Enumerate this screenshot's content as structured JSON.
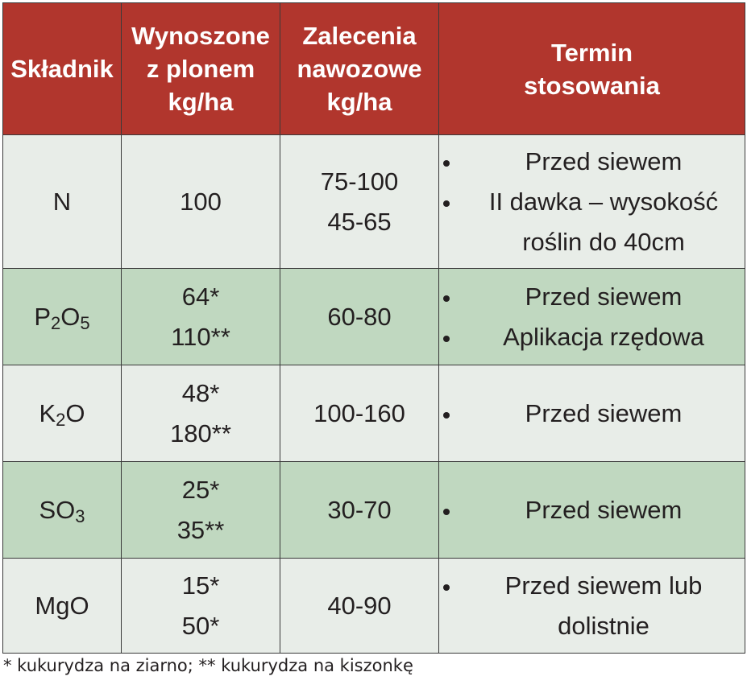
{
  "table": {
    "headers": [
      [
        "Składnik"
      ],
      [
        "Wynoszone",
        "z plonem",
        "kg/ha"
      ],
      [
        "Zalecenia",
        "nawozowe",
        "kg/ha"
      ],
      [
        "Termin",
        "stosowania"
      ]
    ],
    "rows": [
      {
        "component": {
          "base": "N",
          "sub": ""
        },
        "removal": [
          "100"
        ],
        "dose": [
          "75-100",
          "45-65"
        ],
        "timing": [
          "Przed siewem",
          "II dawka – wysokość roślin do 40cm"
        ]
      },
      {
        "component": {
          "base1": "P",
          "sub1": "2",
          "base2": "O",
          "sub2": "5"
        },
        "removal": [
          "64*",
          "110**"
        ],
        "dose": [
          "60-80"
        ],
        "timing": [
          "Przed siewem",
          "Aplikacja rzędowa"
        ]
      },
      {
        "component": {
          "base1": "K",
          "sub1": "2",
          "base2": "O"
        },
        "removal": [
          "48*",
          "180**"
        ],
        "dose": [
          "100-160"
        ],
        "timing": [
          "Przed siewem"
        ]
      },
      {
        "component": {
          "base": "SO",
          "sub": "3"
        },
        "removal": [
          "25*",
          "35**"
        ],
        "dose": [
          "30-70"
        ],
        "timing": [
          "Przed siewem"
        ]
      },
      {
        "component": {
          "base": "MgO",
          "sub": ""
        },
        "removal": [
          "15*",
          "50*"
        ],
        "dose": [
          "40-90"
        ],
        "timing": [
          "Przed siewem lub dolistnie"
        ]
      }
    ]
  },
  "footnote": "* kukurydza na ziarno; ** kukurydza na kiszonkę",
  "colors": {
    "header_bg": "#b1362d",
    "header_text": "#ffffff",
    "row_light": "#e8ede8",
    "row_green": "#c0d8c0",
    "border": "#3a3a3a"
  }
}
